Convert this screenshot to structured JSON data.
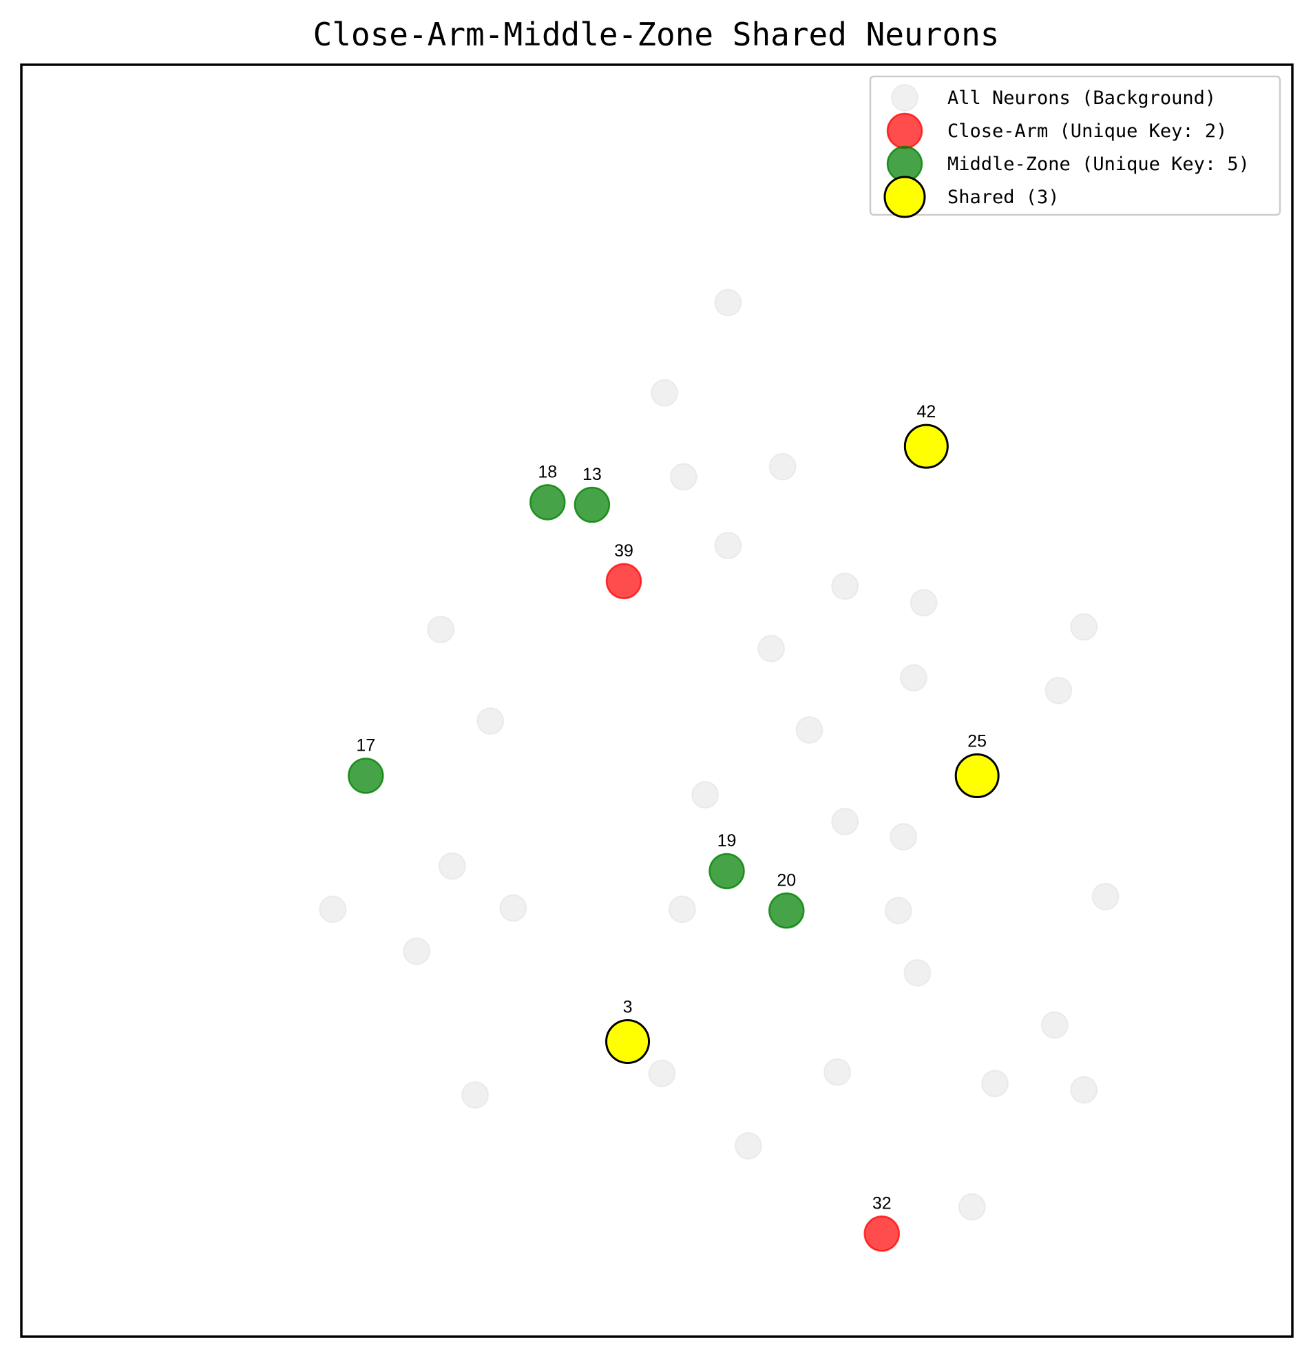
{
  "chart_data": {
    "type": "scatter",
    "title": "Close-Arm-Middle-Zone Shared Neurons",
    "xlabel": "",
    "ylabel": "",
    "axes_visible": false,
    "grid": false,
    "legend_position": "upper right",
    "legend": [
      {
        "key": "background",
        "label": "All Neurons (Background)"
      },
      {
        "key": "close",
        "label": "Close-Arm (Unique Key: 2)"
      },
      {
        "key": "middle",
        "label": "Middle-Zone (Unique Key: 5)"
      },
      {
        "key": "shared",
        "label": "Shared (3)"
      }
    ],
    "colors": {
      "background": "#d3d3d3",
      "close": "#ff0000",
      "middle": "#008000",
      "shared": "#ffff00",
      "shared_edge": "#000000"
    },
    "series": [
      {
        "key": "background",
        "points": [
          {
            "x": 0.656,
            "y": 0.813
          },
          {
            "x": 0.606,
            "y": 0.742
          },
          {
            "x": 0.621,
            "y": 0.676
          },
          {
            "x": 0.699,
            "y": 0.684
          },
          {
            "x": 0.656,
            "y": 0.622
          },
          {
            "x": 0.748,
            "y": 0.59
          },
          {
            "x": 0.81,
            "y": 0.577
          },
          {
            "x": 0.43,
            "y": 0.556
          },
          {
            "x": 0.69,
            "y": 0.541
          },
          {
            "x": 0.936,
            "y": 0.558
          },
          {
            "x": 0.802,
            "y": 0.518
          },
          {
            "x": 0.916,
            "y": 0.508
          },
          {
            "x": 0.469,
            "y": 0.484
          },
          {
            "x": 0.72,
            "y": 0.477
          },
          {
            "x": 0.638,
            "y": 0.426
          },
          {
            "x": 0.748,
            "y": 0.405
          },
          {
            "x": 0.794,
            "y": 0.393
          },
          {
            "x": 0.439,
            "y": 0.37
          },
          {
            "x": 0.953,
            "y": 0.346
          },
          {
            "x": 0.79,
            "y": 0.335
          },
          {
            "x": 0.345,
            "y": 0.336
          },
          {
            "x": 0.487,
            "y": 0.337
          },
          {
            "x": 0.62,
            "y": 0.336
          },
          {
            "x": 0.411,
            "y": 0.303
          },
          {
            "x": 0.805,
            "y": 0.286
          },
          {
            "x": 0.913,
            "y": 0.245
          },
          {
            "x": 0.604,
            "y": 0.207
          },
          {
            "x": 0.742,
            "y": 0.208
          },
          {
            "x": 0.866,
            "y": 0.199
          },
          {
            "x": 0.936,
            "y": 0.194
          },
          {
            "x": 0.457,
            "y": 0.19
          },
          {
            "x": 0.672,
            "y": 0.15
          },
          {
            "x": 0.848,
            "y": 0.102
          }
        ]
      },
      {
        "key": "close",
        "points": [
          {
            "x": 0.574,
            "y": 0.594,
            "label": "39"
          },
          {
            "x": 0.777,
            "y": 0.081,
            "label": "32"
          }
        ]
      },
      {
        "key": "middle",
        "points": [
          {
            "x": 0.514,
            "y": 0.656,
            "label": "18"
          },
          {
            "x": 0.549,
            "y": 0.654,
            "label": "13"
          },
          {
            "x": 0.371,
            "y": 0.441,
            "label": "17"
          },
          {
            "x": 0.655,
            "y": 0.366,
            "label": "19"
          },
          {
            "x": 0.702,
            "y": 0.335,
            "label": "20"
          }
        ]
      },
      {
        "key": "shared",
        "points": [
          {
            "x": 0.812,
            "y": 0.7,
            "label": "42"
          },
          {
            "x": 0.852,
            "y": 0.441,
            "label": "25"
          },
          {
            "x": 0.577,
            "y": 0.232,
            "label": "3"
          }
        ]
      }
    ],
    "xlim": [
      0.1,
      1.1
    ],
    "ylim": [
      0.0,
      1.0
    ]
  }
}
